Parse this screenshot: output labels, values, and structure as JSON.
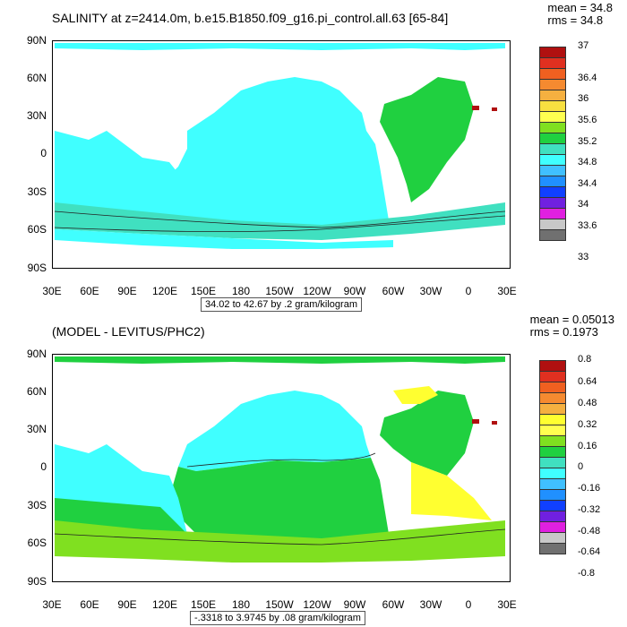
{
  "panels": [
    {
      "title": "SALINITY at z=2414.0m, b.e15.B1850.f09_g16.pi_control.all.63 [65-84]",
      "mean": "mean = 34.8",
      "rms": "rms = 34.8",
      "subtitle": "34.02 to 42.67 by .2 gram/kilogram",
      "colorbar_labels": [
        "37",
        "36.4",
        "36",
        "35.6",
        "35.2",
        "34.8",
        "34.4",
        "34",
        "33.6",
        "33"
      ],
      "colorbar_colors": [
        "#b01010",
        "#e03020",
        "#f06020",
        "#f58a30",
        "#f5b040",
        "#f8e040",
        "#ffff50",
        "#80e020",
        "#20d040",
        "#40e0c0",
        "#40ffff",
        "#40c0ff",
        "#2090ff",
        "#1040ff",
        "#7020e0",
        "#e020e0",
        "#c8c8c8",
        "#707070"
      ]
    },
    {
      "title": "(MODEL - LEVITUS/PHC2)",
      "mean": "mean = 0.05013",
      "rms": "rms = 0.1973",
      "subtitle": "-.3318 to 3.9745 by .08 gram/kilogram",
      "colorbar_labels": [
        "0.8",
        "0.64",
        "0.48",
        "0.32",
        "0.16",
        "0",
        "-0.16",
        "-0.32",
        "-0.48",
        "-0.64",
        "-0.8"
      ],
      "colorbar_colors": [
        "#b01010",
        "#e03020",
        "#f06020",
        "#f58a30",
        "#f5b040",
        "#ffff30",
        "#ffff50",
        "#80e020",
        "#20d040",
        "#40e0c0",
        "#40ffff",
        "#40c0ff",
        "#2090ff",
        "#1040ff",
        "#7020e0",
        "#e020e0",
        "#c8c8c8",
        "#707070"
      ]
    }
  ],
  "lat_labels": [
    "90N",
    "60N",
    "30N",
    "0",
    "30S",
    "60S",
    "90S"
  ],
  "lon_labels": [
    "30E",
    "60E",
    "90E",
    "120E",
    "150E",
    "180",
    "150W",
    "120W",
    "90W",
    "60W",
    "30W",
    "0",
    "30E"
  ],
  "map_colors": {
    "pacific_top": "#40ffff",
    "atlantic_top": "#20d040",
    "southern_top": "#40e0c0",
    "pacific_bottom_north": "#40ffff",
    "pacific_bottom_south": "#20d040",
    "atlantic_bottom": "#ffff30",
    "southern_bottom": "#80e020",
    "arctic_bottom": "#20d040"
  }
}
